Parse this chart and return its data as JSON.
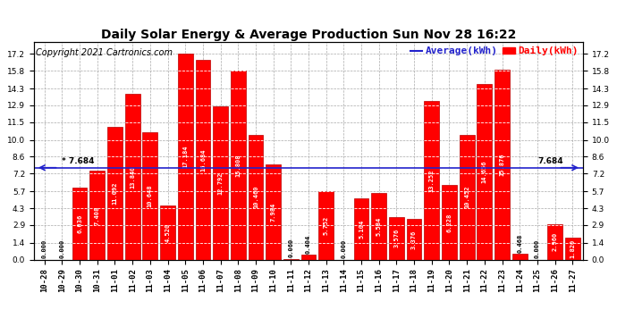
{
  "title": "Daily Solar Energy & Average Production Sun Nov 28 16:22",
  "copyright": "Copyright 2021 Cartronics.com",
  "legend_avg": "Average(kWh)",
  "legend_daily": "Daily(kWh)",
  "average_value": 7.684,
  "categories": [
    "10-28",
    "10-29",
    "10-30",
    "10-31",
    "11-01",
    "11-02",
    "11-03",
    "11-04",
    "11-05",
    "11-06",
    "11-07",
    "11-08",
    "11-09",
    "11-10",
    "11-11",
    "11-12",
    "11-13",
    "11-14",
    "11-15",
    "11-16",
    "11-17",
    "11-18",
    "11-19",
    "11-20",
    "11-21",
    "11-22",
    "11-23",
    "11-24",
    "11-25",
    "11-26",
    "11-27"
  ],
  "values": [
    0.0,
    0.0,
    6.036,
    7.408,
    11.092,
    13.84,
    10.648,
    4.52,
    17.184,
    16.684,
    12.792,
    15.808,
    10.46,
    7.984,
    0.06,
    0.404,
    5.752,
    0.0,
    5.104,
    5.584,
    3.576,
    3.376,
    13.252,
    6.228,
    10.452,
    14.656,
    15.876,
    0.468,
    0.0,
    2.96,
    1.82
  ],
  "bar_color": "#ff0000",
  "bar_edge_color": "#bb0000",
  "avg_line_color": "#2222cc",
  "title_color": "#000000",
  "copyright_color": "#000000",
  "legend_avg_color": "#2222cc",
  "legend_daily_color": "#ff0000",
  "background_color": "#ffffff",
  "grid_color": "#aaaaaa",
  "yticks": [
    0.0,
    1.4,
    2.9,
    4.3,
    5.7,
    7.2,
    8.6,
    10.0,
    11.5,
    12.9,
    14.3,
    15.8,
    17.2
  ],
  "ylim": [
    0.0,
    18.2
  ],
  "value_label_color": "#ffffff",
  "avg_annotation_color": "#000000",
  "title_fontsize": 10,
  "copyright_fontsize": 7,
  "bar_label_fontsize": 5,
  "tick_fontsize": 6.5,
  "legend_fontsize": 8
}
